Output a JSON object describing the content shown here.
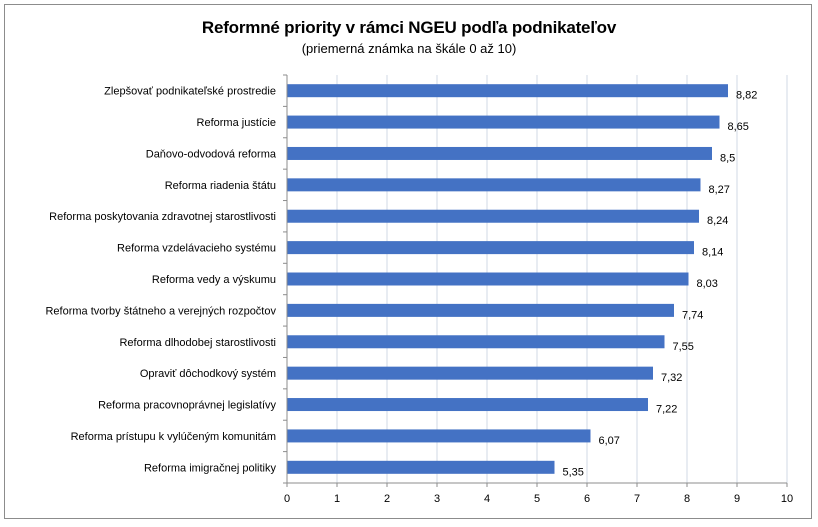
{
  "chart_data": {
    "type": "bar",
    "orientation": "horizontal",
    "title": "Reformné priority v rámci NGEU podľa podnikateľov",
    "subtitle": "(priemerná známka na škále 0 až 10)",
    "categories": [
      "Zlepšovať podnikateľské prostredie",
      "Reforma justície",
      "Daňovo-odvodová reforma",
      "Reforma riadenia štátu",
      "Reforma poskytovania zdravotnej starostlivosti",
      "Reforma vzdelávacieho systému",
      "Reforma vedy a výskumu",
      "Reforma tvorby štátneho a verejných rozpočtov",
      "Reforma dlhodobej starostlivosti",
      "Opraviť dôchodkový systém",
      "Reforma pracovnoprávnej legislatívy",
      "Reforma prístupu k vylúčeným komunitám",
      "Reforma imigračnej politiky"
    ],
    "values": [
      8.82,
      8.65,
      8.5,
      8.27,
      8.24,
      8.14,
      8.03,
      7.74,
      7.55,
      7.32,
      7.22,
      6.07,
      5.35
    ],
    "value_labels": [
      "8,82",
      "8,65",
      "8,5",
      "8,27",
      "8,24",
      "8,14",
      "8,03",
      "7,74",
      "7,55",
      "7,32",
      "7,22",
      "6,07",
      "5,35"
    ],
    "xlim": [
      0,
      10
    ],
    "xticks": [
      "0",
      "1",
      "2",
      "3",
      "4",
      "5",
      "6",
      "7",
      "8",
      "9",
      "10"
    ],
    "grid": "vertical",
    "legend": "none",
    "bar_color": "#4472c4"
  }
}
